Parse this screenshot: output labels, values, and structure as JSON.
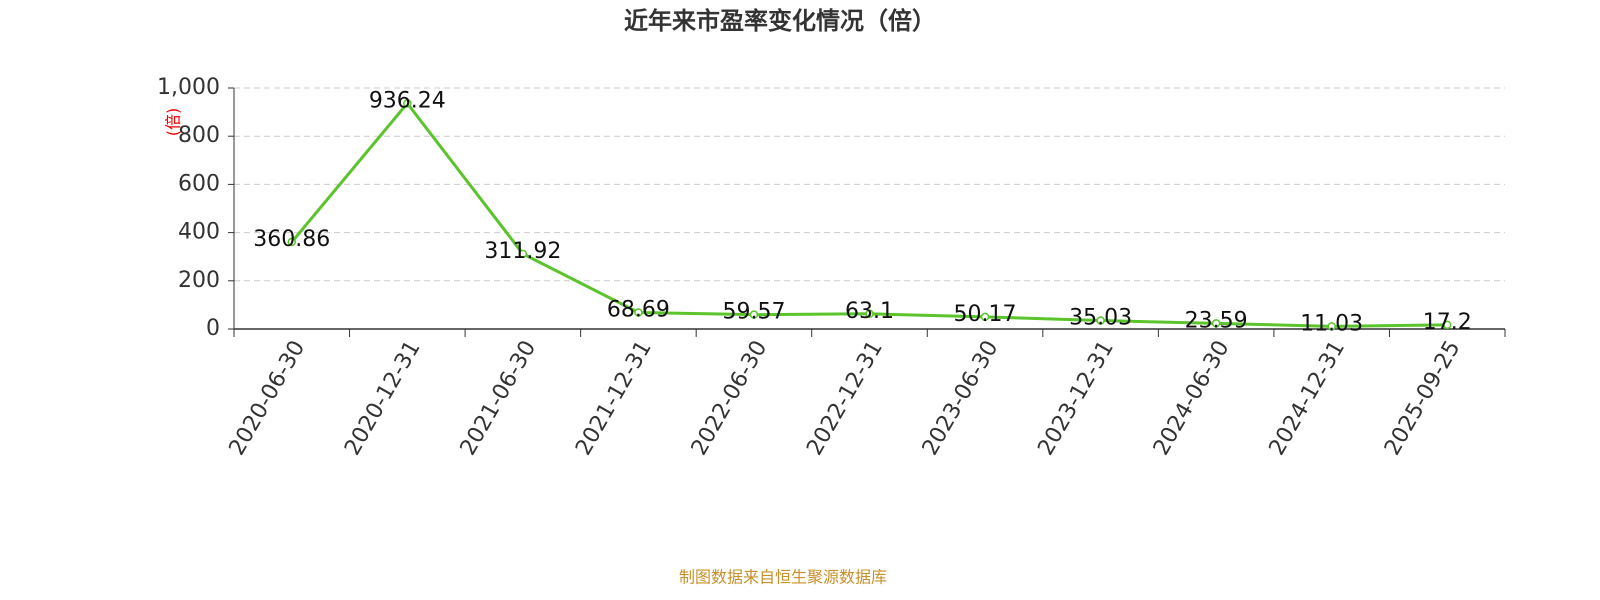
{
  "chart_data": {
    "type": "line",
    "title": "近年来市盈率变化情况（倍）",
    "y_axis_label": "(倍)",
    "source": "制图数据来自恒生聚源数据库",
    "categories": [
      "2020-06-30",
      "2020-12-31",
      "2021-06-30",
      "2021-12-31",
      "2022-06-30",
      "2022-12-31",
      "2023-06-30",
      "2023-12-31",
      "2024-06-30",
      "2024-12-31",
      "2025-09-25"
    ],
    "series": [
      {
        "name": "市盈率",
        "color": "#5ac42a",
        "values": [
          360.86,
          936.24,
          311.92,
          68.69,
          59.57,
          63.1,
          50.17,
          35.03,
          23.59,
          11.03,
          17.2
        ]
      }
    ],
    "ylim": [
      0,
      1000
    ],
    "yticks": [
      0,
      200,
      400,
      600,
      800,
      {
        "value": 1000,
        "label": "1,000"
      }
    ],
    "grid": true
  }
}
